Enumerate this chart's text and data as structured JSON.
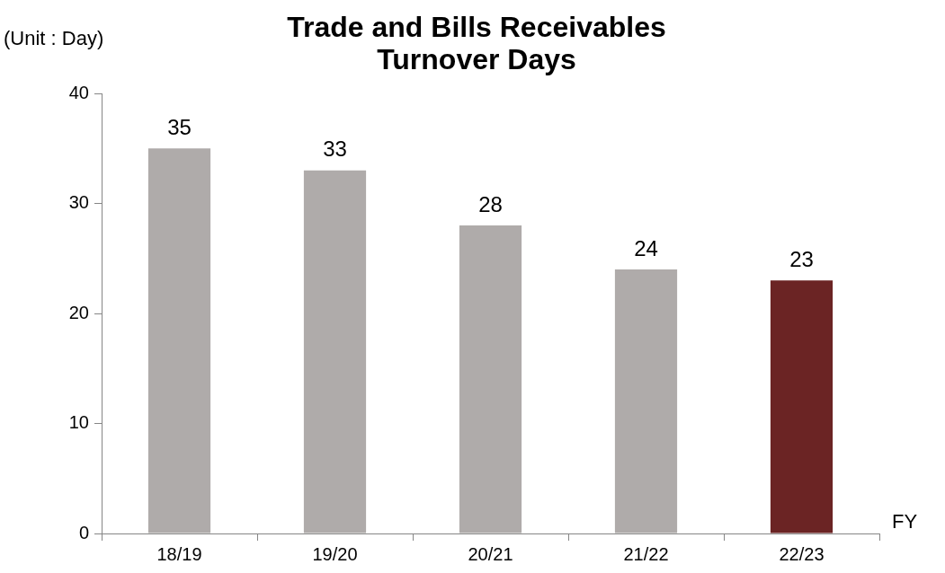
{
  "chart_data": {
    "type": "bar",
    "title": "Trade and Bills Receivables Turnover Days",
    "ylabel": "(Unit : Day)",
    "xlabel": "FY",
    "categories": [
      "18/19",
      "19/20",
      "20/21",
      "21/22",
      "22/23"
    ],
    "values": [
      35,
      33,
      28,
      24,
      23
    ],
    "colors": [
      "#afabaa",
      "#afabaa",
      "#afabaa",
      "#afabaa",
      "#6b2424"
    ],
    "ylim": [
      0,
      40
    ],
    "yticks": [
      0,
      10,
      20,
      30,
      40
    ],
    "grid": false,
    "legend": false,
    "data_labels": true
  }
}
